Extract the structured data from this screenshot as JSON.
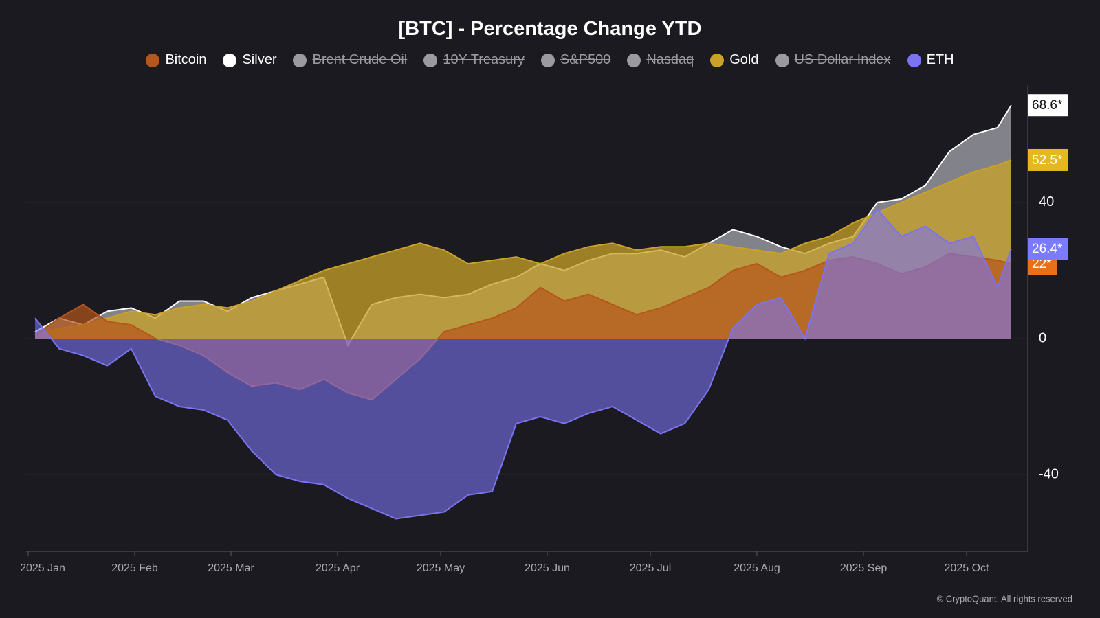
{
  "chart_data": {
    "type": "area",
    "title": "[BTC] - Percentage Change YTD",
    "credit": "© CryptoQuant. All rights reserved",
    "x": [
      2,
      9,
      16,
      23,
      30,
      37,
      44,
      51,
      58,
      65,
      72,
      79,
      86,
      93,
      100,
      107,
      114,
      121,
      128,
      135,
      142,
      149,
      156,
      163,
      170,
      177,
      184,
      191,
      198,
      205,
      212,
      219,
      226,
      233,
      240,
      247,
      254,
      261,
      268,
      275,
      282,
      286
    ],
    "xlim": [
      -0.6,
      290.8
    ],
    "xticks": [
      {
        "value": 0,
        "label": "2025 Jan"
      },
      {
        "value": 31,
        "label": "2025 Feb"
      },
      {
        "value": 59,
        "label": "2025 Mar"
      },
      {
        "value": 90,
        "label": "2025 Apr"
      },
      {
        "value": 120,
        "label": "2025 May"
      },
      {
        "value": 151,
        "label": "2025 Jun"
      },
      {
        "value": 181,
        "label": "2025 Jul"
      },
      {
        "value": 212,
        "label": "2025 Aug"
      },
      {
        "value": 243,
        "label": "2025 Sep"
      },
      {
        "value": 273,
        "label": "2025 Oct"
      }
    ],
    "ylim": [
      -62.6,
      74.3
    ],
    "yticks": [
      -40,
      0,
      40
    ],
    "grid": true,
    "series": [
      {
        "name": "Bitcoin",
        "visible": true,
        "color": "#b5561b",
        "tag_color": "#e8701a",
        "values": [
          1,
          6,
          10,
          5,
          4,
          0,
          -2,
          -5,
          -10,
          -14,
          -13,
          -15,
          -12,
          -16,
          -18,
          -12,
          -6,
          2,
          4,
          6,
          9,
          15,
          11,
          13,
          10,
          7,
          9,
          12,
          15,
          20,
          22,
          18,
          20,
          23,
          24,
          22,
          19,
          21,
          25,
          24,
          23,
          22
        ],
        "value_labels": [
          null,
          null,
          null,
          null,
          null,
          null,
          null,
          null,
          null,
          null,
          null,
          null,
          null,
          null,
          null,
          null,
          null,
          null,
          null,
          null,
          null,
          null,
          null,
          null,
          null,
          null,
          null,
          null,
          null,
          null,
          null,
          null,
          null,
          null,
          null,
          null,
          null,
          null,
          null,
          null,
          null,
          "22*"
        ]
      },
      {
        "name": "Silver",
        "visible": true,
        "color": "#ffffff",
        "fill": "#8e8e96",
        "tag_color": "#ffffff",
        "values": [
          2,
          6,
          4,
          8,
          9,
          6,
          11,
          11,
          8,
          12,
          14,
          16,
          18,
          -2,
          10,
          12,
          13,
          12,
          13,
          16,
          18,
          22,
          20,
          23,
          25,
          25,
          26,
          24,
          28,
          32,
          30,
          27,
          25,
          28,
          30,
          40,
          41,
          45,
          55,
          60,
          62,
          68.6
        ],
        "value_labels": [
          null,
          null,
          null,
          null,
          null,
          null,
          null,
          null,
          null,
          null,
          null,
          null,
          null,
          null,
          null,
          null,
          null,
          null,
          null,
          null,
          null,
          null,
          null,
          null,
          null,
          null,
          null,
          null,
          null,
          null,
          null,
          null,
          null,
          null,
          null,
          null,
          null,
          null,
          null,
          null,
          null,
          "68.6*"
        ]
      },
      {
        "name": "Brent Crude Oil",
        "visible": false,
        "color": "#9a9aa0"
      },
      {
        "name": "10Y Treasury",
        "visible": false,
        "color": "#9a9aa0"
      },
      {
        "name": "S&P500",
        "visible": false,
        "color": "#9a9aa0"
      },
      {
        "name": "Nasdaq",
        "visible": false,
        "color": "#9a9aa0"
      },
      {
        "name": "Gold",
        "visible": true,
        "color": "#c9a227",
        "tag_color": "#e6b820",
        "values": [
          1,
          3,
          4,
          6,
          8,
          7,
          9,
          10,
          9,
          11,
          14,
          17,
          20,
          22,
          24,
          26,
          28,
          26,
          22,
          23,
          24,
          22,
          25,
          27,
          28,
          26,
          27,
          27,
          28,
          27,
          26,
          25,
          28,
          30,
          34,
          37,
          40,
          43,
          46,
          49,
          51,
          52.5
        ],
        "value_labels": [
          null,
          null,
          null,
          null,
          null,
          null,
          null,
          null,
          null,
          null,
          null,
          null,
          null,
          null,
          null,
          null,
          null,
          null,
          null,
          null,
          null,
          null,
          null,
          null,
          null,
          null,
          null,
          null,
          null,
          null,
          null,
          null,
          null,
          null,
          null,
          null,
          null,
          null,
          null,
          null,
          null,
          "52.5*"
        ]
      },
      {
        "name": "US Dollar Index",
        "visible": false,
        "color": "#9a9aa0"
      },
      {
        "name": "ETH",
        "visible": true,
        "color": "#7b73f0",
        "tag_color": "#7b7bff",
        "values": [
          6,
          -3,
          -5,
          -8,
          -3,
          -17,
          -20,
          -21,
          -24,
          -33,
          -40,
          -42,
          -43,
          -47,
          -50,
          -53,
          -52,
          -51,
          -46,
          -45,
          -25,
          -23,
          -25,
          -22,
          -20,
          -24,
          -28,
          -25,
          -15,
          3,
          10,
          12,
          0,
          25,
          28,
          38,
          30,
          33,
          28,
          30,
          15,
          26.4
        ],
        "value_labels": [
          null,
          null,
          null,
          null,
          null,
          null,
          null,
          null,
          null,
          null,
          null,
          null,
          null,
          null,
          null,
          null,
          null,
          null,
          null,
          null,
          null,
          null,
          null,
          null,
          null,
          null,
          null,
          null,
          null,
          null,
          null,
          null,
          null,
          null,
          null,
          null,
          null,
          null,
          null,
          null,
          null,
          "26.4*"
        ]
      }
    ]
  }
}
